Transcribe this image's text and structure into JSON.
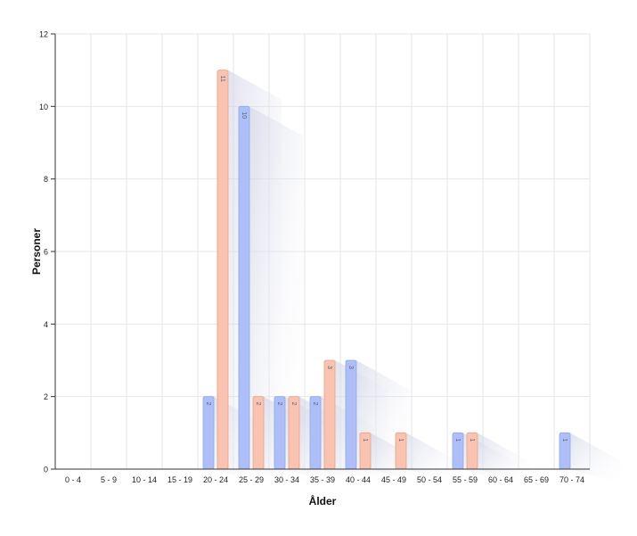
{
  "chart_data": {
    "type": "bar",
    "title": "",
    "xlabel": "Ålder",
    "ylabel": "Personer",
    "ylim": [
      0,
      12
    ],
    "yticks": [
      0,
      2,
      4,
      6,
      8,
      10,
      12
    ],
    "grid": true,
    "legend": "none",
    "categories": [
      "0 - 4",
      "5 - 9",
      "10 - 14",
      "15 - 19",
      "20 - 24",
      "25 - 29",
      "30 - 34",
      "35 - 39",
      "40 - 44",
      "45 - 49",
      "50 - 54",
      "55 - 59",
      "60 - 64",
      "65 - 69",
      "70 - 74"
    ],
    "series": [
      {
        "color": "#aebff7",
        "stroke": "#8ea6f0",
        "values": [
          0,
          0,
          0,
          0,
          2,
          10,
          2,
          2,
          3,
          0,
          0,
          1,
          0,
          0,
          1
        ]
      },
      {
        "color": "#f8c4b1",
        "stroke": "#ef9f85",
        "values": [
          0,
          0,
          0,
          0,
          11,
          2,
          2,
          3,
          1,
          1,
          0,
          1,
          0,
          0,
          0
        ]
      }
    ]
  }
}
